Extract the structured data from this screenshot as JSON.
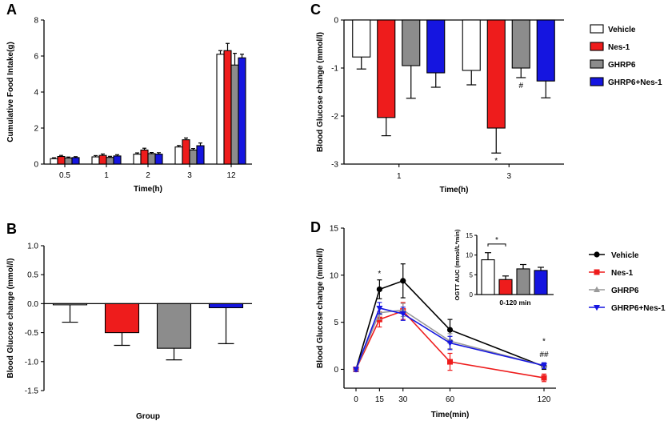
{
  "legend_colors": {
    "Vehicle": "#ffffff",
    "Nes-1": "#ee1c1c",
    "GHRP6": "#8c8c8c",
    "GHRP6+Nes-1": "#1515e0"
  },
  "legend_line_colors": {
    "Vehicle": "#000000",
    "Nes-1": "#ee1c1c",
    "GHRP6": "#9a9a9a",
    "GHRP6+Nes-1": "#1515e0"
  },
  "chart_data": [
    {
      "panel": "A",
      "type": "bar",
      "title": "",
      "xlabel": "Time(h)",
      "ylabel": "Cumulative Food Intake(g)",
      "ylim": [
        0,
        8
      ],
      "yticks": [
        0,
        2,
        4,
        6,
        8
      ],
      "categories": [
        "0.5",
        "1",
        "2",
        "3",
        "12"
      ],
      "series": [
        {
          "name": "Vehicle",
          "values": [
            0.3,
            0.4,
            0.55,
            0.95,
            6.1
          ],
          "errors": [
            0.05,
            0.07,
            0.07,
            0.08,
            0.2
          ]
        },
        {
          "name": "Nes-1",
          "values": [
            0.42,
            0.48,
            0.78,
            1.35,
            6.3
          ],
          "errors": [
            0.06,
            0.08,
            0.1,
            0.1,
            0.4
          ]
        },
        {
          "name": "GHRP6",
          "values": [
            0.34,
            0.37,
            0.58,
            0.78,
            5.5
          ],
          "errors": [
            0.05,
            0.06,
            0.06,
            0.08,
            0.65
          ]
        },
        {
          "name": "GHRP6+Nes-1",
          "values": [
            0.36,
            0.45,
            0.55,
            1.02,
            5.9
          ],
          "errors": [
            0.05,
            0.07,
            0.08,
            0.15,
            0.2
          ]
        }
      ]
    },
    {
      "panel": "B",
      "type": "bar",
      "title": "",
      "xlabel": "Group",
      "ylabel": "Blood Glucose change (mmol/l)",
      "ylim": [
        -1.5,
        1.0
      ],
      "yticks": [
        "-1.5",
        "-1.0",
        "-0.5",
        "0.0",
        "0.5",
        "1.0"
      ],
      "categories": [
        "Vehicle",
        "Nes-1",
        "GHRP6",
        "GHRP6+Nes-1"
      ],
      "values": [
        -0.02,
        -0.5,
        -0.77,
        -0.07
      ],
      "errors": [
        0.3,
        0.22,
        0.2,
        0.62
      ]
    },
    {
      "panel": "C",
      "type": "bar",
      "title": "",
      "xlabel": "Time(h)",
      "ylabel": "Blood Glucose change (mmol/l)",
      "ylim": [
        -3,
        0
      ],
      "yticks": [
        "-3",
        "-2",
        "-1",
        "0"
      ],
      "categories": [
        "1",
        "3"
      ],
      "series": [
        {
          "name": "Vehicle",
          "values": [
            -0.77,
            -1.05
          ],
          "errors": [
            0.25,
            0.3
          ]
        },
        {
          "name": "Nes-1",
          "values": [
            -2.03,
            -2.25
          ],
          "errors": [
            0.38,
            0.52
          ]
        },
        {
          "name": "GHRP6",
          "values": [
            -0.95,
            -1.0
          ],
          "errors": [
            0.68,
            0.2
          ]
        },
        {
          "name": "GHRP6+Nes-1",
          "values": [
            -1.1,
            -1.27
          ],
          "errors": [
            0.3,
            0.35
          ]
        }
      ],
      "annotations": [
        {
          "text": "*",
          "category": "3",
          "series": "Nes-1"
        },
        {
          "text": "#",
          "category": "3",
          "series": "GHRP6"
        }
      ]
    },
    {
      "panel": "D",
      "type": "line",
      "title": "",
      "xlabel": "Time(min)",
      "ylabel": "Blood Glucose change (mmol/l)",
      "ylim": [
        -2,
        15
      ],
      "yticks": [
        "0",
        "5",
        "10",
        "15"
      ],
      "xticks": [
        "0",
        "15",
        "30",
        "60",
        "120"
      ],
      "x": [
        0,
        15,
        30,
        60,
        120
      ],
      "series": [
        {
          "name": "Vehicle",
          "marker": "circle",
          "values": [
            0,
            8.5,
            9.4,
            4.2,
            0.3
          ],
          "errors": [
            0.2,
            1.0,
            1.8,
            1.1,
            0.3
          ]
        },
        {
          "name": "Nes-1",
          "marker": "square",
          "values": [
            0,
            5.3,
            6.2,
            0.8,
            -0.9
          ],
          "errors": [
            0.2,
            0.8,
            0.9,
            0.9,
            0.4
          ]
        },
        {
          "name": "GHRP6",
          "marker": "triangle-up",
          "values": [
            0,
            6.0,
            6.3,
            3.0,
            0.4
          ],
          "errors": [
            0.2,
            0.7,
            0.7,
            0.8,
            0.3
          ]
        },
        {
          "name": "GHRP6+Nes-1",
          "marker": "triangle-down",
          "values": [
            0,
            6.5,
            5.9,
            2.8,
            0.4
          ],
          "errors": [
            0.2,
            0.6,
            0.7,
            0.7,
            0.3
          ]
        }
      ],
      "annotations": [
        {
          "text": "*",
          "x": 15
        },
        {
          "text": "*",
          "x": 120
        },
        {
          "text": "##",
          "x": 120
        }
      ],
      "inset": {
        "type": "bar",
        "xlabel": "0-120 min",
        "ylabel": "OGTT AUC (mmol/L*min)",
        "ylim": [
          0,
          15
        ],
        "yticks": [
          "0",
          "5",
          "10",
          "15"
        ],
        "categories": [
          "Vehicle",
          "Nes-1",
          "GHRP6",
          "GHRP6+Nes-1"
        ],
        "values": [
          8.8,
          3.8,
          6.5,
          6.1
        ],
        "errors": [
          1.8,
          0.9,
          1.1,
          0.8
        ],
        "annotations": [
          {
            "text": "*",
            "between": [
              "Vehicle",
              "Nes-1"
            ]
          }
        ]
      }
    }
  ]
}
